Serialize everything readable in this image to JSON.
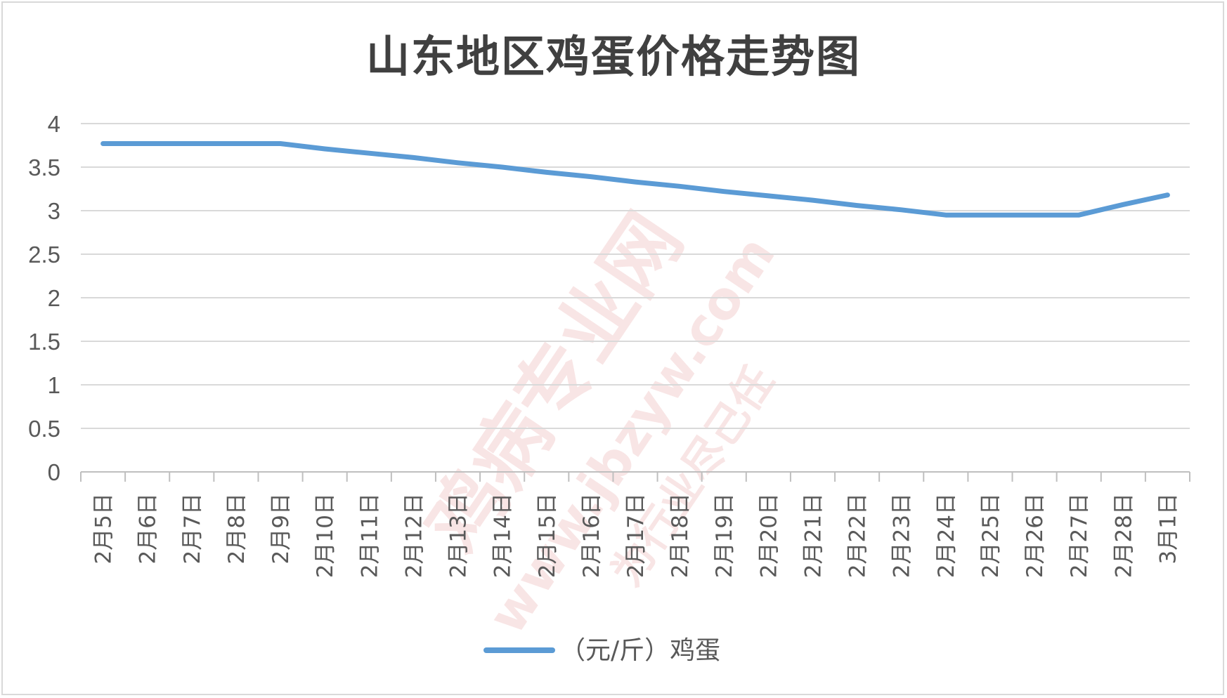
{
  "chart_data": {
    "type": "line",
    "title": "山东地区鸡蛋价格走势图",
    "categories": [
      "2月5日",
      "2月6日",
      "2月7日",
      "2月8日",
      "2月9日",
      "2月10日",
      "2月11日",
      "2月12日",
      "2月13日",
      "2月14日",
      "2月15日",
      "2月16日",
      "2月17日",
      "2月18日",
      "2月19日",
      "2月20日",
      "2月21日",
      "2月22日",
      "2月23日",
      "2月24日",
      "2月25日",
      "2月26日",
      "2月27日",
      "2月28日",
      "3月1日"
    ],
    "series": [
      {
        "name": "（元/斤）鸡蛋",
        "color": "#5b9bd5",
        "values": [
          3.77,
          3.77,
          3.77,
          3.77,
          3.77,
          3.71,
          3.66,
          3.61,
          3.55,
          3.5,
          3.44,
          3.39,
          3.33,
          3.28,
          3.22,
          3.17,
          3.12,
          3.06,
          3.01,
          2.95,
          2.95,
          2.95,
          2.95,
          3.07,
          3.18
        ]
      }
    ],
    "ylim": [
      0,
      4
    ],
    "yticks": [
      0,
      0.5,
      1,
      1.5,
      2,
      2.5,
      3,
      3.5,
      4
    ],
    "grid": true,
    "legend_position": "bottom",
    "watermark": {
      "main": "鸡病专业网",
      "url": "www.jbzyw.com",
      "slogan": "为行业尽己任"
    }
  }
}
